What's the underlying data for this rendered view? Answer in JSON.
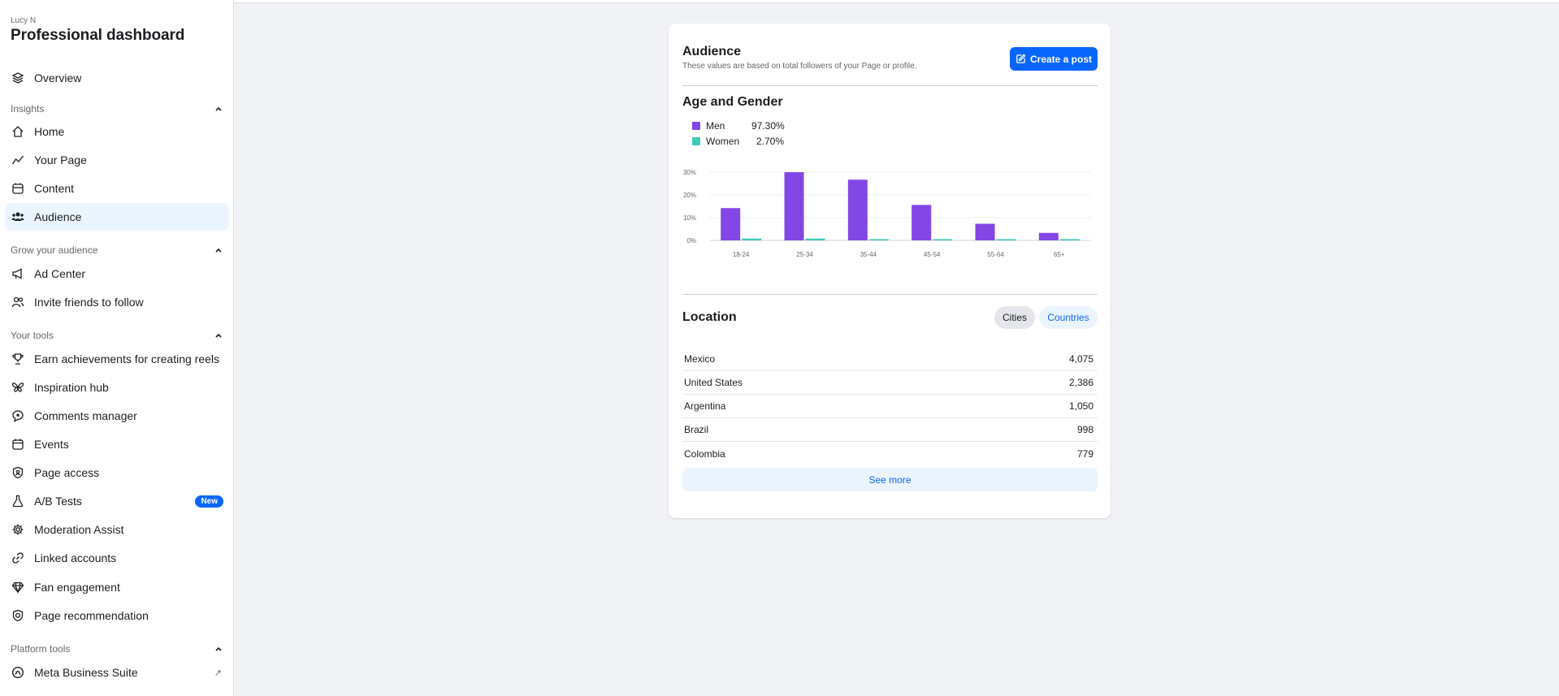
{
  "sidebar": {
    "user": "Lucy N",
    "title": "Professional dashboard",
    "overview": {
      "label": "Overview",
      "icon": "layers-icon"
    },
    "sections": {
      "insights": "Insights",
      "grow": "Grow your audience",
      "tools": "Your tools",
      "platform": "Platform tools"
    },
    "insights_items": [
      {
        "label": "Home",
        "icon": "home-icon"
      },
      {
        "label": "Your Page",
        "icon": "trend-icon"
      },
      {
        "label": "Content",
        "icon": "content-icon"
      },
      {
        "label": "Audience",
        "icon": "people-icon"
      }
    ],
    "grow_items": [
      {
        "label": "Ad Center",
        "icon": "megaphone-icon"
      },
      {
        "label": "Invite friends to follow",
        "icon": "invite-icon"
      }
    ],
    "tools_items": [
      {
        "label": "Earn achievements for creating reels",
        "icon": "trophy-icon"
      },
      {
        "label": "Inspiration hub",
        "icon": "butterfly-icon"
      },
      {
        "label": "Comments manager",
        "icon": "comments-icon"
      },
      {
        "label": "Events",
        "icon": "calendar-icon"
      },
      {
        "label": "Page access",
        "icon": "shield-icon"
      },
      {
        "label": "A/B Tests",
        "icon": "flask-icon",
        "badge": "New"
      },
      {
        "label": "Moderation Assist",
        "icon": "gear-icon"
      },
      {
        "label": "Linked accounts",
        "icon": "link-icon"
      },
      {
        "label": "Fan engagement",
        "icon": "diamond-icon"
      },
      {
        "label": "Page recommendation",
        "icon": "badge-icon"
      }
    ],
    "platform_items": [
      {
        "label": "Meta Business Suite",
        "icon": "meta-icon"
      }
    ]
  },
  "card": {
    "title": "Audience",
    "subtitle": "These values are based on total followers of your Page or profile.",
    "create_post": "Create a post",
    "age_gender_title": "Age and Gender",
    "legend": [
      {
        "name": "Men",
        "value": "97.30%",
        "color": "#8347e6"
      },
      {
        "name": "Women",
        "value": "2.70%",
        "color": "#3ec9b8"
      }
    ],
    "location_title": "Location",
    "location_tabs": {
      "cities": "Cities",
      "countries": "Countries"
    },
    "locations": [
      {
        "name": "Mexico",
        "value": "4,075"
      },
      {
        "name": "United States",
        "value": "2,386"
      },
      {
        "name": "Argentina",
        "value": "1,050"
      },
      {
        "name": "Brazil",
        "value": "998"
      },
      {
        "name": "Colombia",
        "value": "779"
      }
    ],
    "see_more": "See more"
  },
  "chart_data": {
    "type": "bar",
    "categories": [
      "18-24",
      "25-34",
      "35-44",
      "45-54",
      "55-64",
      "65+"
    ],
    "series": [
      {
        "name": "Men",
        "values": [
          14.2,
          30.0,
          26.7,
          15.6,
          7.3,
          3.3
        ],
        "color": "#8347e6"
      },
      {
        "name": "Women",
        "values": [
          0.8,
          0.8,
          0.5,
          0.3,
          0.2,
          0.1
        ],
        "color": "#3ec9b8"
      }
    ],
    "y_ticks": [
      "30%",
      "20%",
      "10%",
      "0%"
    ],
    "ylim": [
      0,
      30
    ],
    "grid": true
  }
}
